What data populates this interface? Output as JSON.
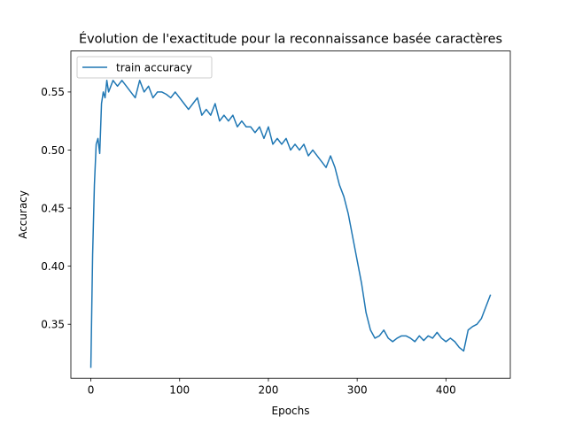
{
  "chart_data": {
    "type": "line",
    "title": "Évolution de l'exactitude pour la reconnaissance basée caractères",
    "xlabel": "Epochs",
    "ylabel": "Accuracy",
    "xlim": [
      -22.5,
      472.5
    ],
    "ylim": [
      0.3035,
      0.5853
    ],
    "xticks": [
      0,
      100,
      200,
      300,
      400
    ],
    "yticks": [
      0.35,
      0.4,
      0.45,
      0.5,
      0.55
    ],
    "xtick_labels": [
      "0",
      "100",
      "200",
      "300",
      "400"
    ],
    "ytick_labels": [
      "0.35",
      "0.40",
      "0.45",
      "0.50",
      "0.55"
    ],
    "legend": {
      "position": "top-left",
      "entries": [
        "train accuracy"
      ]
    },
    "grid": false,
    "series": [
      {
        "name": "train accuracy",
        "color": "#1f77b4",
        "x": [
          0,
          2,
          4,
          6,
          8,
          10,
          12,
          14,
          16,
          18,
          20,
          25,
          30,
          35,
          40,
          45,
          50,
          55,
          60,
          65,
          70,
          75,
          80,
          85,
          90,
          95,
          100,
          105,
          110,
          115,
          120,
          125,
          130,
          135,
          140,
          145,
          150,
          155,
          160,
          165,
          170,
          175,
          180,
          185,
          190,
          195,
          200,
          205,
          210,
          215,
          220,
          225,
          230,
          235,
          240,
          245,
          250,
          255,
          260,
          265,
          270,
          275,
          280,
          285,
          290,
          295,
          300,
          305,
          310,
          315,
          320,
          325,
          330,
          335,
          340,
          345,
          350,
          355,
          360,
          365,
          370,
          375,
          380,
          385,
          390,
          395,
          400,
          405,
          410,
          415,
          420,
          425,
          430,
          435,
          440,
          445,
          450
        ],
        "y": [
          0.313,
          0.41,
          0.47,
          0.505,
          0.51,
          0.497,
          0.54,
          0.55,
          0.545,
          0.56,
          0.55,
          0.56,
          0.555,
          0.56,
          0.555,
          0.55,
          0.545,
          0.56,
          0.55,
          0.555,
          0.545,
          0.55,
          0.55,
          0.548,
          0.545,
          0.55,
          0.545,
          0.54,
          0.535,
          0.54,
          0.545,
          0.53,
          0.535,
          0.53,
          0.54,
          0.525,
          0.53,
          0.525,
          0.53,
          0.52,
          0.525,
          0.52,
          0.52,
          0.515,
          0.52,
          0.51,
          0.52,
          0.505,
          0.51,
          0.505,
          0.51,
          0.5,
          0.505,
          0.5,
          0.505,
          0.495,
          0.5,
          0.495,
          0.49,
          0.485,
          0.495,
          0.485,
          0.47,
          0.46,
          0.445,
          0.425,
          0.405,
          0.385,
          0.36,
          0.345,
          0.338,
          0.34,
          0.345,
          0.338,
          0.335,
          0.338,
          0.34,
          0.34,
          0.338,
          0.335,
          0.34,
          0.336,
          0.34,
          0.338,
          0.343,
          0.338,
          0.335,
          0.338,
          0.335,
          0.33,
          0.327,
          0.345,
          0.348,
          0.35,
          0.355,
          0.365,
          0.375
        ]
      }
    ]
  }
}
